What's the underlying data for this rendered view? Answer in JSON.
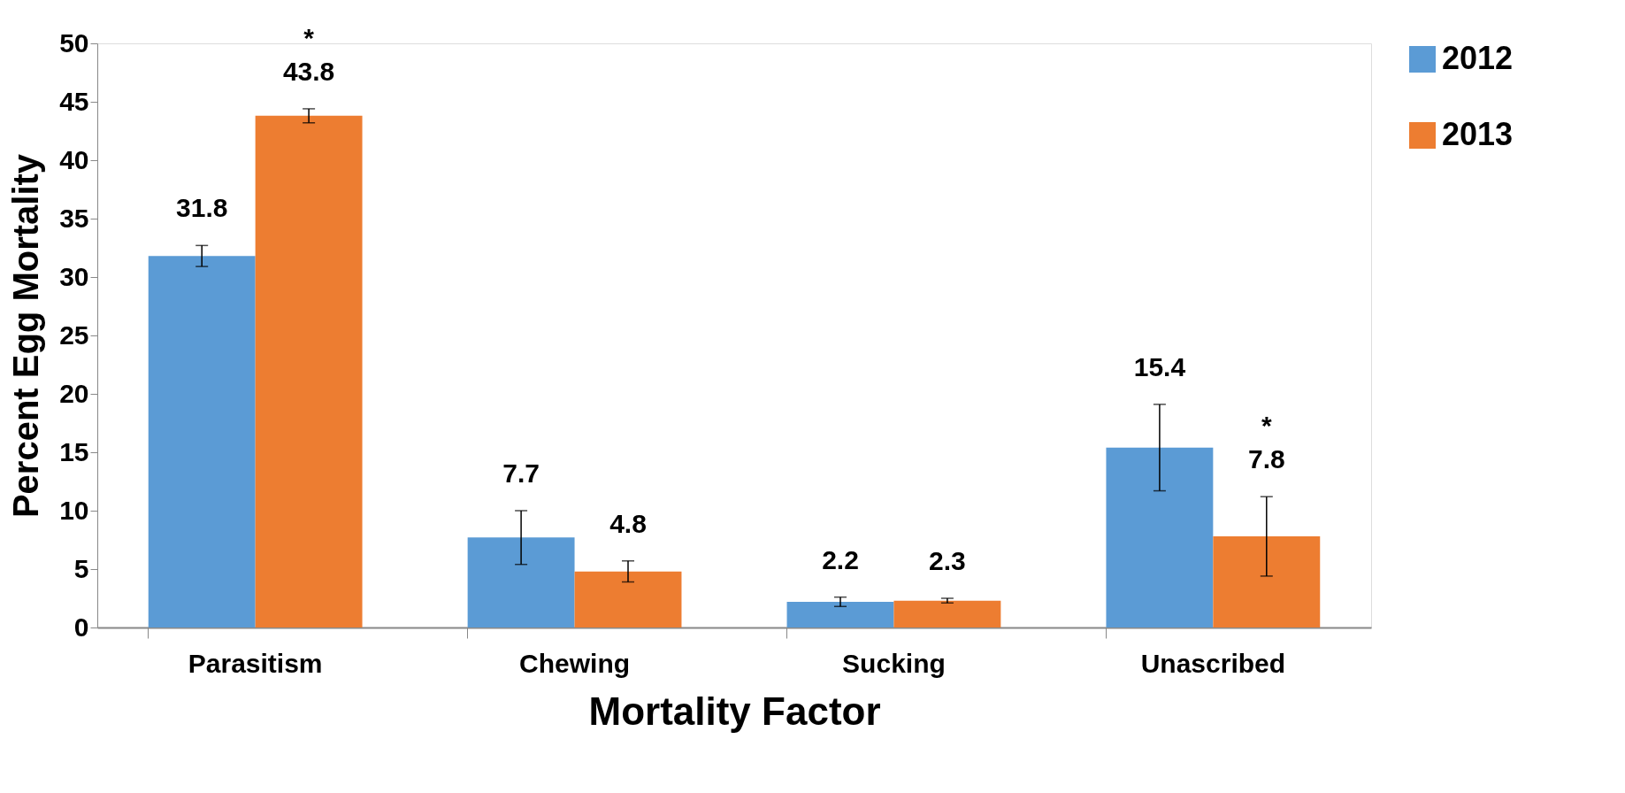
{
  "chart_data": {
    "type": "bar",
    "xlabel": "Mortality Factor",
    "ylabel": "Percent Egg Mortality",
    "categories": [
      "Parasitism",
      "Chewing",
      "Sucking",
      "Unascribed"
    ],
    "series": [
      {
        "name": "2012",
        "color": "#5b9bd5",
        "values": [
          31.8,
          7.7,
          2.2,
          15.4
        ],
        "errors": [
          0.9,
          2.3,
          0.4,
          3.7
        ],
        "value_labels": [
          "31.8",
          "7.7",
          "2.2",
          "15.4"
        ]
      },
      {
        "name": "2013",
        "color": "#ed7d31",
        "values": [
          43.8,
          4.8,
          2.3,
          7.8
        ],
        "errors": [
          0.6,
          0.9,
          0.2,
          3.4
        ],
        "value_labels": [
          "*\n43.8",
          "4.8",
          "2.3",
          "*\n7.8"
        ]
      }
    ],
    "ylim": [
      0,
      50
    ],
    "yticks": [
      0,
      5,
      10,
      15,
      20,
      25,
      30,
      35,
      40,
      45,
      50
    ],
    "grid": false,
    "legend": "right"
  }
}
